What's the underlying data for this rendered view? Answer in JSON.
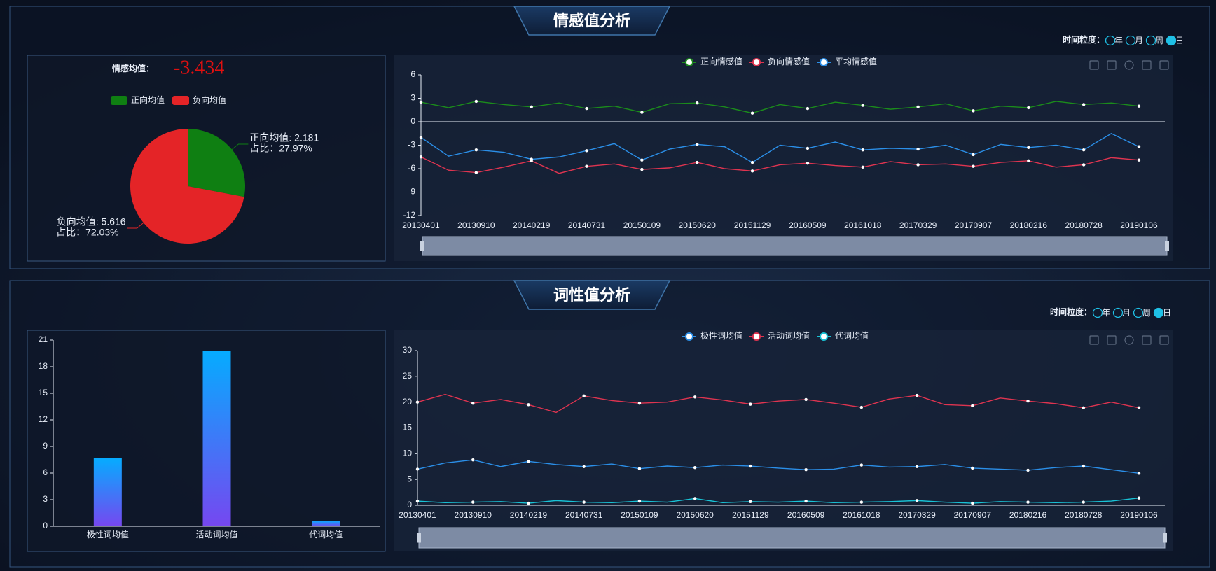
{
  "sections": [
    {
      "title": "情感值分析",
      "granularity": {
        "label": "时间粒度：",
        "options": [
          "年",
          "月",
          "周",
          "日"
        ],
        "selected": 3
      }
    },
    {
      "title": "词性值分析",
      "granularity": {
        "label": "时间粒度：",
        "options": [
          "年",
          "月",
          "周",
          "日"
        ],
        "selected": 3
      }
    }
  ],
  "chart_data": [
    {
      "type": "pie",
      "mean_label": "情感均值：",
      "mean_value": -3.434,
      "categories": [
        "正向均值",
        "负向均值"
      ],
      "values": [
        2.181,
        5.616
      ],
      "value_labels": [
        "正向均值: 2.181",
        "负向均值: 5.616"
      ],
      "percent_labels": [
        "占比：27.97%",
        "占比：72.03%"
      ],
      "colors": [
        "#0f7f12",
        "#e42427"
      ]
    },
    {
      "type": "line",
      "categories": [
        "20130401",
        null,
        "20130910",
        null,
        "20140219",
        null,
        "20140731",
        null,
        "20150109",
        null,
        "20150620",
        null,
        "20151129",
        null,
        "20160509",
        null,
        "20161018",
        null,
        "20170329",
        null,
        "20170907",
        null,
        "20180216",
        null,
        "20180728",
        null,
        "20190106"
      ],
      "ylim": [
        -12,
        6
      ],
      "yticks": [
        -12,
        -9,
        -6,
        -3,
        0,
        3,
        6
      ],
      "series": [
        {
          "name": "正向情感值",
          "color": "#1b8c1b",
          "values": [
            2.5,
            1.8,
            2.6,
            2.2,
            1.9,
            2.4,
            1.7,
            2.0,
            1.2,
            2.3,
            2.4,
            1.9,
            1.1,
            2.2,
            1.7,
            2.5,
            2.1,
            1.6,
            1.9,
            2.3,
            1.4,
            2.0,
            1.8,
            2.6,
            2.2,
            2.4,
            2.0
          ]
        },
        {
          "name": "负向情感值",
          "color": "#df3450",
          "values": [
            -4.5,
            -6.2,
            -6.5,
            -5.8,
            -5.0,
            -6.6,
            -5.7,
            -5.4,
            -6.1,
            -5.9,
            -5.2,
            -6.0,
            -6.3,
            -5.5,
            -5.3,
            -5.6,
            -5.8,
            -5.1,
            -5.5,
            -5.4,
            -5.7,
            -5.2,
            -5.0,
            -5.8,
            -5.5,
            -4.6,
            -4.9
          ]
        },
        {
          "name": "平均情感值",
          "color": "#2b8fe8",
          "values": [
            -2.0,
            -4.4,
            -3.6,
            -3.9,
            -4.8,
            -4.5,
            -3.7,
            -2.8,
            -4.9,
            -3.5,
            -2.9,
            -3.2,
            -5.2,
            -3.0,
            -3.4,
            -2.6,
            -3.6,
            -3.4,
            -3.5,
            -3.0,
            -4.2,
            -2.9,
            -3.3,
            -3.0,
            -3.6,
            -1.5,
            -3.2
          ]
        }
      ]
    },
    {
      "type": "bar",
      "categories": [
        "极性词均值",
        "活动词均值",
        "代词均值"
      ],
      "values": [
        7.7,
        19.8,
        0.6
      ],
      "ylim": [
        0,
        21
      ],
      "yticks": [
        0,
        3,
        6,
        9,
        12,
        15,
        18,
        21
      ],
      "gradient": [
        "#05acff",
        "#7647f0"
      ]
    },
    {
      "type": "line",
      "categories": [
        "20130401",
        null,
        "20130910",
        null,
        "20140219",
        null,
        "20140731",
        null,
        "20150109",
        null,
        "20150620",
        null,
        "20151129",
        null,
        "20160509",
        null,
        "20161018",
        null,
        "20170329",
        null,
        "20170907",
        null,
        "20180216",
        null,
        "20180728",
        null,
        "20190106"
      ],
      "ylim": [
        0,
        30
      ],
      "yticks": [
        0,
        5,
        10,
        15,
        20,
        25,
        30
      ],
      "series": [
        {
          "name": "极性词均值",
          "color": "#2b8fe8",
          "values": [
            7.0,
            8.2,
            8.8,
            7.5,
            8.5,
            7.9,
            7.5,
            8.0,
            7.1,
            7.6,
            7.3,
            7.8,
            7.6,
            7.2,
            6.9,
            7.0,
            7.8,
            7.4,
            7.5,
            7.9,
            7.2,
            7.0,
            6.8,
            7.3,
            7.6,
            6.9,
            6.2
          ]
        },
        {
          "name": "活动词均值",
          "color": "#df3450",
          "values": [
            20.0,
            21.5,
            19.8,
            20.5,
            19.5,
            18.0,
            21.2,
            20.3,
            19.8,
            20.0,
            21.0,
            20.4,
            19.6,
            20.2,
            20.5,
            19.8,
            19.0,
            20.6,
            21.3,
            19.5,
            19.3,
            20.8,
            20.2,
            19.7,
            18.9,
            20.0,
            18.9
          ]
        },
        {
          "name": "代词均值",
          "color": "#19c3d6",
          "values": [
            0.8,
            0.5,
            0.6,
            0.7,
            0.4,
            0.9,
            0.6,
            0.5,
            0.8,
            0.6,
            1.3,
            0.5,
            0.7,
            0.6,
            0.8,
            0.5,
            0.6,
            0.7,
            0.9,
            0.6,
            0.4,
            0.7,
            0.6,
            0.5,
            0.6,
            0.8,
            1.4
          ]
        }
      ]
    }
  ]
}
